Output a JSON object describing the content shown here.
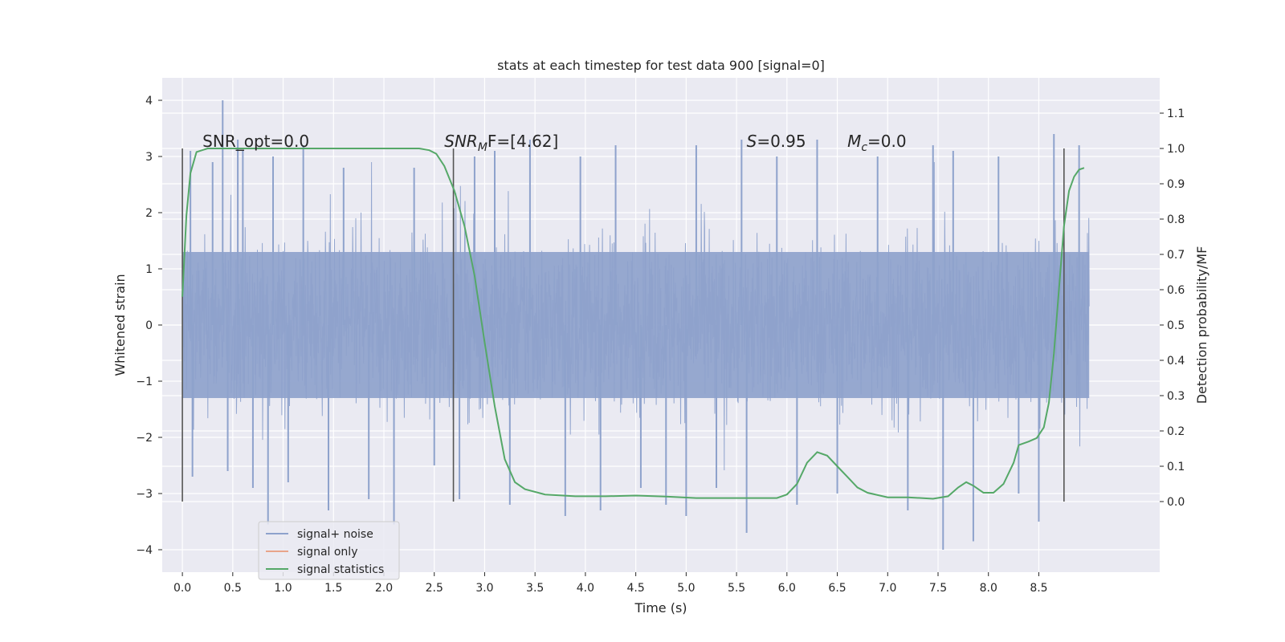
{
  "chart_data": {
    "type": "line",
    "title": "stats at each timestep for test data 900 [signal=0]",
    "xlabel": "Time (s)",
    "ylabel": "Whitened strain",
    "ylabel_right": "Detection probability/MF",
    "xlim": [
      -0.2,
      9.7
    ],
    "ylim": [
      -4.4,
      4.4
    ],
    "ylim_right": [
      -0.2,
      1.2
    ],
    "x_ticks": [
      0.0,
      0.5,
      1.0,
      1.5,
      2.0,
      2.5,
      3.0,
      3.5,
      4.0,
      4.5,
      5.0,
      5.5,
      6.0,
      6.5,
      7.0,
      7.5,
      8.0,
      8.5
    ],
    "x_tick_labels": [
      "0.0",
      "0.5",
      "1.0",
      "1.5",
      "2.0",
      "2.5",
      "3.0",
      "3.5",
      "4.0",
      "4.5",
      "5.0",
      "5.5",
      "6.0",
      "6.5",
      "7.0",
      "7.5",
      "8.0",
      "8.5"
    ],
    "y_ticks": [
      -4,
      -3,
      -2,
      -1,
      0,
      1,
      2,
      3,
      4
    ],
    "y_tick_labels": [
      "−4",
      "−3",
      "−2",
      "−1",
      "0",
      "1",
      "2",
      "3",
      "4"
    ],
    "y_right_ticks": [
      0.0,
      0.1,
      0.2,
      0.3,
      0.4,
      0.5,
      0.6,
      0.7,
      0.8,
      0.9,
      1.0,
      1.1
    ],
    "y_right_tick_labels": [
      "0.0",
      "0.1",
      "0.2",
      "0.3",
      "0.4",
      "0.5",
      "0.6",
      "0.7",
      "0.8",
      "0.9",
      "1.0",
      "1.1"
    ],
    "grid": true,
    "legend": {
      "placement": "lower-left",
      "entries": [
        {
          "label": "signal+ noise",
          "color": "#8ea2cc"
        },
        {
          "label": "signal only",
          "color": "#e8a48a"
        },
        {
          "label": "signal statistics",
          "color": "#55a868"
        }
      ]
    },
    "annotations": [
      {
        "text": "SNR_opt=0.0",
        "x": 0.2,
        "y_right": 1.0
      },
      {
        "main": "SNR",
        "sub": "M",
        "rest": "F=[4.62]",
        "x": 2.6,
        "y_right": 1.0
      },
      {
        "main": "S",
        "sub": "",
        "rest": "=0.95",
        "x": 5.6,
        "y_right": 1.0
      },
      {
        "main": "M",
        "sub": "c",
        "rest": "=0.0",
        "x": 6.6,
        "y_right": 1.0
      }
    ],
    "vertical_markers": {
      "x": [
        0.0,
        2.69,
        8.75
      ],
      "y_range_right": [
        0.0,
        1.0
      ],
      "color": "#555555"
    },
    "series": [
      {
        "name": "signal+ noise",
        "color": "#8ea2cc",
        "axis": "left",
        "x_range": [
          0.0,
          9.0
        ],
        "note": "dense noise band",
        "band": [
          -1.3,
          1.3
        ],
        "extremes": [
          [
            0.08,
            3.1
          ],
          [
            0.1,
            -2.7
          ],
          [
            0.3,
            2.9
          ],
          [
            0.4,
            4.0
          ],
          [
            0.45,
            -2.6
          ],
          [
            0.55,
            3.3
          ],
          [
            0.6,
            3.1
          ],
          [
            0.7,
            -2.9
          ],
          [
            0.85,
            -3.55
          ],
          [
            0.9,
            3.0
          ],
          [
            1.05,
            -2.8
          ],
          [
            1.2,
            3.2
          ],
          [
            1.45,
            -3.3
          ],
          [
            1.6,
            2.8
          ],
          [
            1.85,
            -3.1
          ],
          [
            2.1,
            -3.55
          ],
          [
            2.3,
            2.8
          ],
          [
            2.5,
            -2.5
          ],
          [
            2.75,
            -3.1
          ],
          [
            2.9,
            3.0
          ],
          [
            3.1,
            3.1
          ],
          [
            3.25,
            -3.2
          ],
          [
            3.45,
            3.3
          ],
          [
            3.8,
            -3.4
          ],
          [
            3.95,
            3.0
          ],
          [
            4.15,
            -3.3
          ],
          [
            4.3,
            3.2
          ],
          [
            4.55,
            -2.9
          ],
          [
            4.8,
            -3.2
          ],
          [
            5.0,
            -3.4
          ],
          [
            5.1,
            3.2
          ],
          [
            5.3,
            -2.9
          ],
          [
            5.55,
            3.3
          ],
          [
            5.6,
            -3.7
          ],
          [
            5.9,
            3.0
          ],
          [
            6.1,
            -3.2
          ],
          [
            6.3,
            3.3
          ],
          [
            6.5,
            -3.0
          ],
          [
            6.9,
            3.0
          ],
          [
            7.2,
            -3.3
          ],
          [
            7.45,
            3.2
          ],
          [
            7.55,
            -4.0
          ],
          [
            7.65,
            3.1
          ],
          [
            7.85,
            -3.85
          ],
          [
            8.1,
            3.0
          ],
          [
            8.3,
            -3.0
          ],
          [
            8.5,
            -3.5
          ],
          [
            8.65,
            3.4
          ],
          [
            8.9,
            3.2
          ]
        ]
      },
      {
        "name": "signal only",
        "color": "#e8a48a",
        "axis": "left",
        "points": []
      },
      {
        "name": "signal statistics",
        "color": "#55a868",
        "axis": "right",
        "points": [
          [
            0.0,
            0.58
          ],
          [
            0.04,
            0.81
          ],
          [
            0.08,
            0.93
          ],
          [
            0.14,
            0.99
          ],
          [
            0.25,
            1.0
          ],
          [
            0.5,
            1.0
          ],
          [
            1.0,
            1.0
          ],
          [
            1.5,
            1.0
          ],
          [
            2.0,
            1.0
          ],
          [
            2.35,
            1.0
          ],
          [
            2.45,
            0.995
          ],
          [
            2.52,
            0.985
          ],
          [
            2.6,
            0.95
          ],
          [
            2.7,
            0.88
          ],
          [
            2.8,
            0.78
          ],
          [
            2.9,
            0.64
          ],
          [
            3.0,
            0.45
          ],
          [
            3.1,
            0.27
          ],
          [
            3.2,
            0.12
          ],
          [
            3.3,
            0.055
          ],
          [
            3.4,
            0.035
          ],
          [
            3.6,
            0.02
          ],
          [
            3.9,
            0.015
          ],
          [
            4.2,
            0.015
          ],
          [
            4.5,
            0.017
          ],
          [
            4.8,
            0.014
          ],
          [
            5.1,
            0.01
          ],
          [
            5.4,
            0.01
          ],
          [
            5.7,
            0.01
          ],
          [
            5.9,
            0.01
          ],
          [
            6.0,
            0.02
          ],
          [
            6.1,
            0.05
          ],
          [
            6.2,
            0.11
          ],
          [
            6.3,
            0.14
          ],
          [
            6.4,
            0.13
          ],
          [
            6.5,
            0.1
          ],
          [
            6.6,
            0.07
          ],
          [
            6.7,
            0.04
          ],
          [
            6.8,
            0.025
          ],
          [
            7.0,
            0.012
          ],
          [
            7.2,
            0.012
          ],
          [
            7.45,
            0.008
          ],
          [
            7.6,
            0.015
          ],
          [
            7.7,
            0.04
          ],
          [
            7.78,
            0.055
          ],
          [
            7.85,
            0.045
          ],
          [
            7.95,
            0.025
          ],
          [
            8.05,
            0.025
          ],
          [
            8.15,
            0.05
          ],
          [
            8.25,
            0.11
          ],
          [
            8.3,
            0.16
          ],
          [
            8.4,
            0.17
          ],
          [
            8.48,
            0.18
          ],
          [
            8.55,
            0.21
          ],
          [
            8.6,
            0.28
          ],
          [
            8.65,
            0.42
          ],
          [
            8.7,
            0.6
          ],
          [
            8.75,
            0.78
          ],
          [
            8.8,
            0.88
          ],
          [
            8.85,
            0.92
          ],
          [
            8.9,
            0.94
          ],
          [
            8.95,
            0.945
          ]
        ]
      }
    ]
  }
}
